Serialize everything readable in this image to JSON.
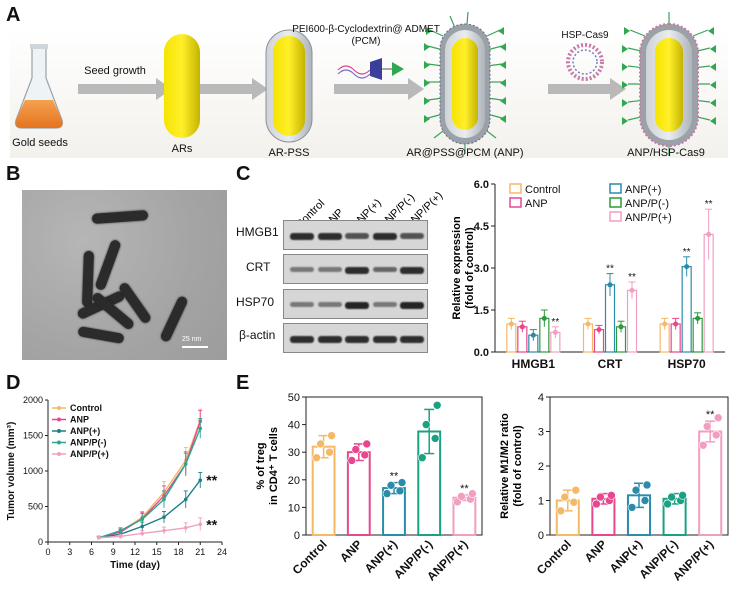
{
  "panel_labels": {
    "a": "A",
    "b": "B",
    "c": "C",
    "d": "D",
    "e": "E"
  },
  "panel_a": {
    "steps": [
      "Gold seeds",
      "ARs",
      "AR-PSS",
      "AR@PSS@PCM (ANP)",
      "ANP/HSP-Cas9"
    ],
    "arrows": [
      "Seed growth",
      "",
      "PEI600-β-Cyclodextrin@ ADMET\n(PCM)",
      "HSP-Cas9"
    ],
    "pcm_line1": "PEI600-β-Cyclodextrin@ ADMET",
    "pcm_line2": "(PCM)"
  },
  "panel_b": {
    "scale_bar": "25 nm"
  },
  "panel_c_blot": {
    "lanes": [
      "Control",
      "ANP",
      "ANP(+)",
      "ANP/P(-)",
      "ANP/P(+)"
    ],
    "rows": [
      "HMGB1",
      "CRT",
      "HSP70",
      "β-actin"
    ],
    "band_intensity": [
      [
        0.9,
        0.9,
        0.7,
        0.9,
        0.7
      ],
      [
        0.5,
        0.5,
        0.9,
        0.6,
        0.9
      ],
      [
        0.5,
        0.5,
        0.95,
        0.5,
        0.95
      ],
      [
        0.9,
        0.9,
        0.9,
        0.9,
        0.9
      ]
    ]
  },
  "colors": {
    "Control": "#f5b867",
    "ANP": "#e8478f",
    "ANP(+)": "#2a8cab",
    "ANP/P(-)": "#2d9a3c",
    "ANP/P(+)": "#f29ec1",
    "d_ANP(+)": "#1f7f86",
    "d_ANP/P(-)": "#2aa88f",
    "e_ANP/P(-)": "#1aa181"
  },
  "chart_data": [
    {
      "id": "C",
      "type": "bar",
      "categories": [
        "HMGB1",
        "CRT",
        "HSP70"
      ],
      "series": [
        {
          "name": "Control",
          "values": [
            1.0,
            1.0,
            1.0
          ],
          "err": [
            0.2,
            0.2,
            0.2
          ]
        },
        {
          "name": "ANP",
          "values": [
            0.9,
            0.8,
            1.0
          ],
          "err": [
            0.2,
            0.15,
            0.2
          ]
        },
        {
          "name": "ANP(+)",
          "values": [
            0.6,
            2.4,
            3.05
          ],
          "err": [
            0.2,
            0.4,
            0.35
          ]
        },
        {
          "name": "ANP/P(-)",
          "values": [
            1.2,
            0.9,
            1.2
          ],
          "err": [
            0.3,
            0.2,
            0.2
          ]
        },
        {
          "name": "ANP/P(+)",
          "values": [
            0.7,
            2.2,
            4.2
          ],
          "err": [
            0.2,
            0.3,
            0.9
          ]
        }
      ],
      "significance": [
        {
          "category": "HMGB1",
          "series": "ANP/P(+)",
          "label": "**"
        },
        {
          "category": "CRT",
          "series": "ANP(+)",
          "label": "**"
        },
        {
          "category": "CRT",
          "series": "ANP/P(+)",
          "label": "**"
        },
        {
          "category": "HSP70",
          "series": "ANP(+)",
          "label": "**"
        },
        {
          "category": "HSP70",
          "series": "ANP/P(+)",
          "label": "**"
        }
      ],
      "ylabel_line1": "Relative expression",
      "ylabel_line2": "(fold of control)",
      "ylim": [
        0,
        6
      ],
      "yticks": [
        "0.0",
        "1.5",
        "3.0",
        "4.5",
        "6.0"
      ],
      "legend": [
        "Control",
        "ANP",
        "ANP(+)",
        "ANP/P(-)",
        "ANP/P(+)"
      ]
    },
    {
      "id": "D",
      "type": "line",
      "x": [
        7,
        10,
        13,
        16,
        19,
        21
      ],
      "series": [
        {
          "name": "Control",
          "values": [
            60,
            150,
            350,
            700,
            1150,
            1720
          ],
          "err": [
            20,
            40,
            80,
            150,
            180,
            150
          ]
        },
        {
          "name": "ANP",
          "values": [
            60,
            140,
            330,
            650,
            1100,
            1700
          ],
          "err": [
            20,
            40,
            90,
            140,
            170,
            150
          ]
        },
        {
          "name": "ANP(+)",
          "values": [
            60,
            110,
            220,
            350,
            600,
            870
          ],
          "err": [
            20,
            40,
            60,
            80,
            120,
            110
          ]
        },
        {
          "name": "ANP/P(-)",
          "values": [
            60,
            160,
            320,
            600,
            1100,
            1600
          ],
          "err": [
            20,
            40,
            80,
            120,
            150,
            140
          ]
        },
        {
          "name": "ANP/P(+)",
          "values": [
            60,
            80,
            120,
            160,
            200,
            250
          ],
          "err": [
            20,
            30,
            40,
            50,
            70,
            90
          ]
        }
      ],
      "significance": [
        {
          "series": "ANP(+)",
          "label": "**"
        },
        {
          "series": "ANP/P(+)",
          "label": "**"
        }
      ],
      "xlabel": "Time (day)",
      "ylabel": "Tumor volume (mm³)",
      "ylim": [
        0,
        2000
      ],
      "xlim": [
        0,
        24
      ],
      "xticks": [
        "0",
        "3",
        "6",
        "9",
        "12",
        "15",
        "18",
        "21",
        "24"
      ],
      "yticks": [
        "0",
        "500",
        "1000",
        "1500",
        "2000"
      ],
      "legend": [
        "Control",
        "ANP",
        "ANP(+)",
        "ANP/P(-)",
        "ANP/P(+)"
      ]
    },
    {
      "id": "E1",
      "type": "bar",
      "categories": [
        "Control",
        "ANP",
        "ANP(+)",
        "ANP/P(-)",
        "ANP/P(+)"
      ],
      "values": [
        32,
        30,
        17,
        37.5,
        13.5
      ],
      "err": [
        4,
        3,
        2,
        8,
        1
      ],
      "points": [
        [
          28,
          30,
          33,
          36
        ],
        [
          27,
          29,
          31,
          33
        ],
        [
          15,
          16,
          18,
          19
        ],
        [
          28,
          35,
          40,
          47
        ],
        [
          12,
          13,
          14,
          15
        ]
      ],
      "significance": [
        "",
        "",
        "**",
        "",
        "**"
      ],
      "ylabel_line1": "% of treg",
      "ylabel_line2": "in CD4⁺ T cells",
      "ylim": [
        0,
        50
      ],
      "yticks": [
        "0",
        "10",
        "20",
        "30",
        "40",
        "50"
      ]
    },
    {
      "id": "E2",
      "type": "bar",
      "categories": [
        "Control",
        "ANP",
        "ANP(+)",
        "ANP/P(-)",
        "ANP/P(+)"
      ],
      "values": [
        1.0,
        1.05,
        1.15,
        1.05,
        3.0
      ],
      "err": [
        0.3,
        0.15,
        0.35,
        0.15,
        0.3
      ],
      "points": [
        [
          0.7,
          0.95,
          1.1,
          1.3
        ],
        [
          0.9,
          1.0,
          1.1,
          1.15
        ],
        [
          0.8,
          1.0,
          1.3,
          1.45
        ],
        [
          0.9,
          1.0,
          1.1,
          1.15
        ],
        [
          2.6,
          2.9,
          3.15,
          3.4
        ]
      ],
      "significance": [
        "",
        "",
        "",
        "",
        "**"
      ],
      "ylabel_line1": "Relative M1/M2 ratio",
      "ylabel_line2": "(fold of control)",
      "ylim": [
        0,
        4
      ],
      "yticks": [
        "0",
        "1",
        "2",
        "3",
        "4"
      ]
    }
  ]
}
